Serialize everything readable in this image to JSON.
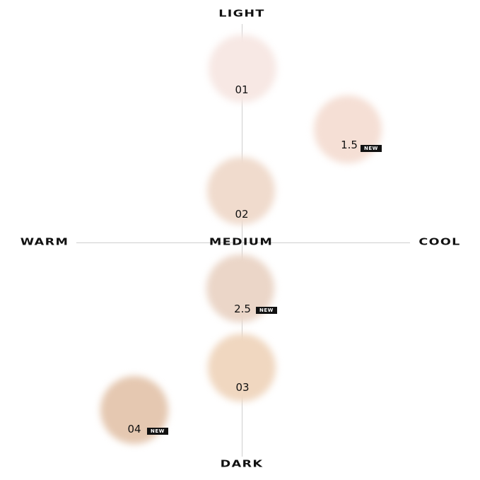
{
  "axes": {
    "top": "LIGHT",
    "bottom": "DARK",
    "left": "WARM",
    "right": "COOL",
    "center": "MEDIUM"
  },
  "badge_label": "NEW",
  "shades": [
    {
      "label": "01",
      "color": "#f7e8e4",
      "is_new": false
    },
    {
      "label": "1.5",
      "color": "#f5dfd5",
      "is_new": true
    },
    {
      "label": "02",
      "color": "#f0dbcd",
      "is_new": false
    },
    {
      "label": "2.5",
      "color": "#ebd6c8",
      "is_new": true
    },
    {
      "label": "03",
      "color": "#f0d7c0",
      "is_new": false
    },
    {
      "label": "04",
      "color": "#e5c8b1",
      "is_new": true
    }
  ]
}
